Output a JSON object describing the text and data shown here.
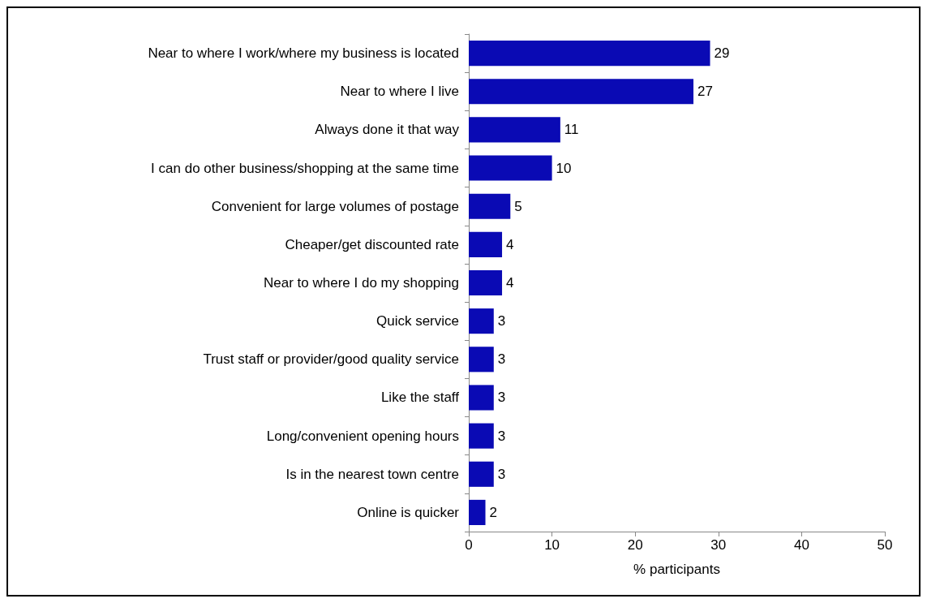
{
  "chart_data": {
    "type": "bar",
    "orientation": "horizontal",
    "xlabel": "% participants",
    "categories": [
      "Near to where I work/where my business is located",
      "Near to where I live",
      "Always done it that way",
      "I can do other business/shopping at the same time",
      "Convenient for large volumes of postage",
      "Cheaper/get discounted rate",
      "Near to where I do my shopping",
      "Quick service",
      "Trust staff or provider/good quality service",
      "Like the staff",
      "Long/convenient opening hours",
      "Is in the nearest town centre",
      "Online is quicker"
    ],
    "values": [
      29,
      27,
      11,
      10,
      5,
      4,
      4,
      3,
      3,
      3,
      3,
      3,
      2
    ],
    "color": "#0a0ab4",
    "xlim": [
      0,
      50
    ],
    "xticks": [
      0,
      10,
      20,
      30,
      40,
      50
    ],
    "grid": false,
    "data_labels": true
  }
}
